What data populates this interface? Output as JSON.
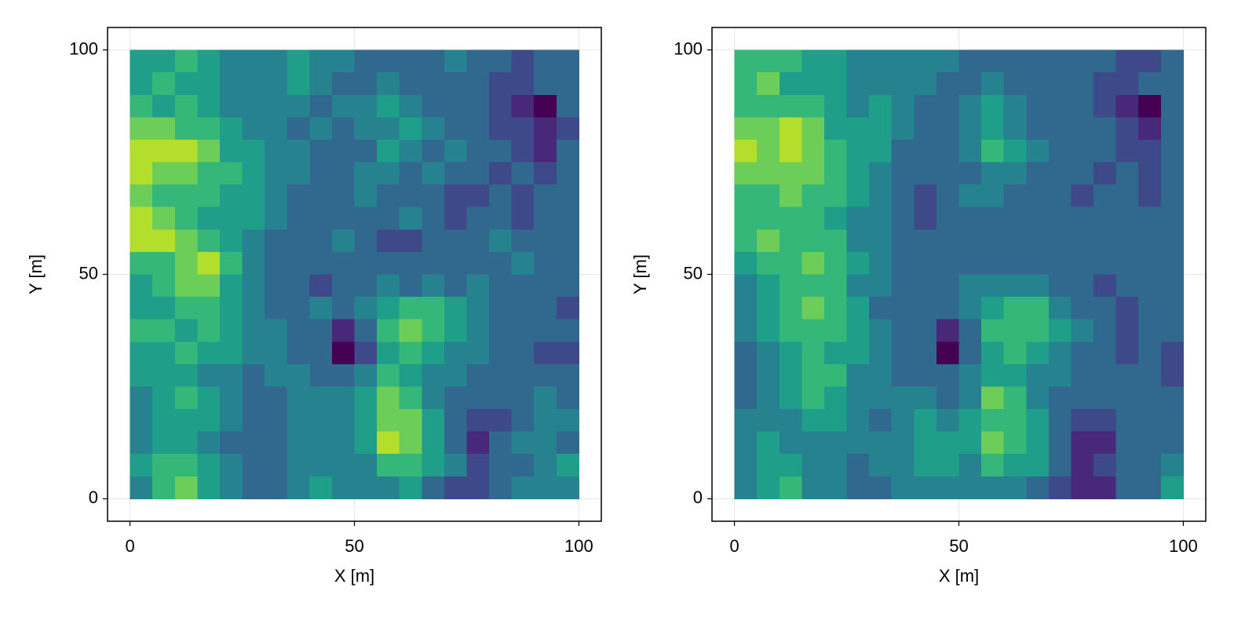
{
  "chart_data": [
    {
      "type": "heatmap",
      "colormap": "viridis",
      "zlim": [
        0,
        9
      ],
      "x_range": [
        0,
        100
      ],
      "y_range": [
        0,
        100
      ],
      "xlabel": "X [m]",
      "ylabel": "Y [m]",
      "xlim": [
        -5,
        105
      ],
      "ylim": [
        -5,
        105
      ],
      "xticks": [
        0,
        50,
        100
      ],
      "yticks": [
        0,
        50,
        100
      ],
      "grid": true,
      "z": [
        [
          5,
          5,
          6,
          5,
          4,
          4,
          4,
          5,
          4,
          4,
          3,
          3,
          3,
          3,
          4,
          3,
          3,
          2,
          3,
          3
        ],
        [
          5,
          6,
          5,
          5,
          4,
          4,
          4,
          5,
          4,
          3,
          3,
          4,
          3,
          3,
          3,
          3,
          2,
          2,
          3,
          3
        ],
        [
          6,
          5,
          6,
          5,
          4,
          4,
          4,
          4,
          3,
          4,
          4,
          5,
          4,
          3,
          3,
          3,
          2,
          1,
          0,
          3
        ],
        [
          7,
          7,
          6,
          6,
          5,
          4,
          4,
          3,
          4,
          3,
          4,
          4,
          5,
          4,
          3,
          3,
          2,
          2,
          1,
          2
        ],
        [
          8,
          8,
          8,
          7,
          5,
          5,
          4,
          4,
          3,
          3,
          3,
          5,
          4,
          3,
          4,
          3,
          3,
          2,
          1,
          3
        ],
        [
          8,
          7,
          7,
          6,
          6,
          5,
          4,
          4,
          3,
          3,
          4,
          4,
          3,
          4,
          3,
          3,
          2,
          3,
          2,
          3
        ],
        [
          7,
          6,
          6,
          6,
          5,
          5,
          4,
          3,
          3,
          3,
          4,
          3,
          3,
          3,
          2,
          2,
          3,
          2,
          3,
          3
        ],
        [
          8,
          7,
          6,
          5,
          5,
          5,
          4,
          3,
          3,
          3,
          3,
          3,
          4,
          3,
          2,
          3,
          3,
          2,
          3,
          3
        ],
        [
          8,
          8,
          7,
          6,
          5,
          4,
          3,
          3,
          3,
          4,
          3,
          2,
          2,
          3,
          3,
          3,
          4,
          3,
          3,
          3
        ],
        [
          6,
          6,
          7,
          8,
          6,
          4,
          3,
          3,
          3,
          3,
          3,
          3,
          3,
          3,
          3,
          3,
          3,
          4,
          3,
          3
        ],
        [
          5,
          6,
          7,
          7,
          5,
          4,
          3,
          3,
          2,
          3,
          3,
          4,
          3,
          4,
          3,
          4,
          3,
          3,
          3,
          3
        ],
        [
          5,
          5,
          6,
          6,
          5,
          4,
          3,
          3,
          4,
          3,
          4,
          5,
          6,
          6,
          5,
          4,
          3,
          3,
          3,
          2
        ],
        [
          6,
          6,
          5,
          6,
          5,
          4,
          4,
          3,
          3,
          1,
          3,
          6,
          7,
          6,
          5,
          4,
          3,
          3,
          3,
          3
        ],
        [
          5,
          5,
          6,
          5,
          5,
          4,
          4,
          3,
          3,
          0,
          2,
          5,
          6,
          5,
          4,
          4,
          3,
          3,
          2,
          2
        ],
        [
          5,
          5,
          5,
          4,
          4,
          3,
          4,
          4,
          3,
          3,
          4,
          6,
          5,
          4,
          4,
          3,
          3,
          3,
          3,
          3
        ],
        [
          4,
          5,
          6,
          5,
          4,
          3,
          3,
          4,
          4,
          4,
          5,
          7,
          6,
          4,
          3,
          3,
          3,
          3,
          4,
          3
        ],
        [
          4,
          5,
          5,
          5,
          4,
          3,
          3,
          4,
          4,
          4,
          5,
          7,
          7,
          5,
          3,
          2,
          2,
          3,
          4,
          4
        ],
        [
          4,
          5,
          5,
          4,
          3,
          3,
          3,
          4,
          4,
          4,
          5,
          8,
          7,
          5,
          3,
          1,
          3,
          4,
          4,
          3
        ],
        [
          5,
          6,
          6,
          5,
          4,
          3,
          3,
          4,
          4,
          4,
          4,
          6,
          6,
          5,
          4,
          2,
          3,
          3,
          4,
          5
        ],
        [
          4,
          6,
          7,
          5,
          4,
          3,
          3,
          4,
          5,
          4,
          4,
          4,
          5,
          3,
          2,
          2,
          3,
          4,
          4,
          4
        ]
      ]
    },
    {
      "type": "heatmap",
      "colormap": "viridis",
      "zlim": [
        0,
        9
      ],
      "x_range": [
        0,
        100
      ],
      "y_range": [
        0,
        100
      ],
      "xlabel": "X [m]",
      "ylabel": "Y [m]",
      "xlim": [
        -5,
        105
      ],
      "ylim": [
        -5,
        105
      ],
      "xticks": [
        0,
        50,
        100
      ],
      "yticks": [
        0,
        50,
        100
      ],
      "grid": true,
      "z": [
        [
          6,
          6,
          6,
          5,
          5,
          4,
          4,
          4,
          4,
          4,
          3,
          3,
          3,
          3,
          3,
          3,
          3,
          2,
          2,
          3
        ],
        [
          6,
          7,
          5,
          5,
          5,
          4,
          4,
          4,
          4,
          3,
          3,
          4,
          3,
          3,
          3,
          3,
          2,
          2,
          3,
          3
        ],
        [
          6,
          6,
          6,
          6,
          5,
          4,
          5,
          4,
          3,
          3,
          4,
          5,
          4,
          3,
          3,
          3,
          2,
          1,
          0,
          3
        ],
        [
          7,
          7,
          8,
          7,
          5,
          5,
          5,
          4,
          3,
          3,
          4,
          5,
          4,
          3,
          3,
          3,
          3,
          2,
          1,
          3
        ],
        [
          8,
          7,
          8,
          7,
          6,
          5,
          5,
          3,
          3,
          3,
          4,
          6,
          5,
          4,
          3,
          3,
          3,
          2,
          2,
          3
        ],
        [
          7,
          7,
          7,
          7,
          6,
          5,
          4,
          3,
          3,
          3,
          3,
          4,
          4,
          3,
          3,
          3,
          2,
          3,
          2,
          3
        ],
        [
          6,
          6,
          7,
          6,
          6,
          5,
          4,
          3,
          2,
          3,
          4,
          4,
          3,
          3,
          3,
          2,
          3,
          3,
          2,
          3
        ],
        [
          6,
          6,
          6,
          6,
          5,
          4,
          4,
          3,
          2,
          3,
          3,
          3,
          3,
          3,
          3,
          3,
          3,
          3,
          3,
          3
        ],
        [
          6,
          7,
          6,
          6,
          6,
          4,
          4,
          3,
          3,
          3,
          3,
          3,
          3,
          3,
          3,
          3,
          3,
          3,
          3,
          3
        ],
        [
          5,
          6,
          6,
          7,
          6,
          5,
          4,
          3,
          3,
          3,
          3,
          3,
          3,
          3,
          3,
          3,
          3,
          3,
          3,
          3
        ],
        [
          4,
          5,
          6,
          6,
          6,
          4,
          4,
          3,
          3,
          3,
          4,
          4,
          4,
          4,
          3,
          3,
          2,
          3,
          3,
          3
        ],
        [
          4,
          5,
          6,
          7,
          6,
          5,
          3,
          3,
          3,
          3,
          4,
          5,
          6,
          6,
          4,
          3,
          3,
          2,
          3,
          3
        ],
        [
          4,
          5,
          6,
          6,
          6,
          5,
          4,
          3,
          3,
          1,
          3,
          6,
          6,
          6,
          5,
          4,
          3,
          2,
          3,
          3
        ],
        [
          3,
          4,
          5,
          6,
          5,
          5,
          4,
          3,
          3,
          0,
          3,
          5,
          6,
          5,
          4,
          3,
          3,
          2,
          3,
          2
        ],
        [
          3,
          4,
          5,
          6,
          6,
          4,
          4,
          3,
          3,
          3,
          4,
          5,
          5,
          4,
          4,
          3,
          3,
          3,
          3,
          2
        ],
        [
          3,
          4,
          5,
          6,
          5,
          4,
          4,
          4,
          4,
          3,
          4,
          7,
          6,
          4,
          3,
          3,
          3,
          3,
          3,
          3
        ],
        [
          4,
          4,
          4,
          5,
          5,
          4,
          3,
          4,
          5,
          4,
          5,
          6,
          6,
          5,
          3,
          2,
          2,
          3,
          3,
          3
        ],
        [
          4,
          5,
          4,
          4,
          4,
          4,
          4,
          4,
          5,
          5,
          5,
          7,
          6,
          5,
          3,
          1,
          1,
          3,
          3,
          3
        ],
        [
          4,
          5,
          5,
          4,
          4,
          3,
          4,
          4,
          5,
          5,
          4,
          6,
          5,
          5,
          3,
          1,
          2,
          3,
          3,
          4
        ],
        [
          4,
          5,
          6,
          4,
          4,
          3,
          3,
          4,
          4,
          4,
          4,
          4,
          4,
          3,
          2,
          1,
          1,
          3,
          3,
          5
        ]
      ]
    }
  ]
}
